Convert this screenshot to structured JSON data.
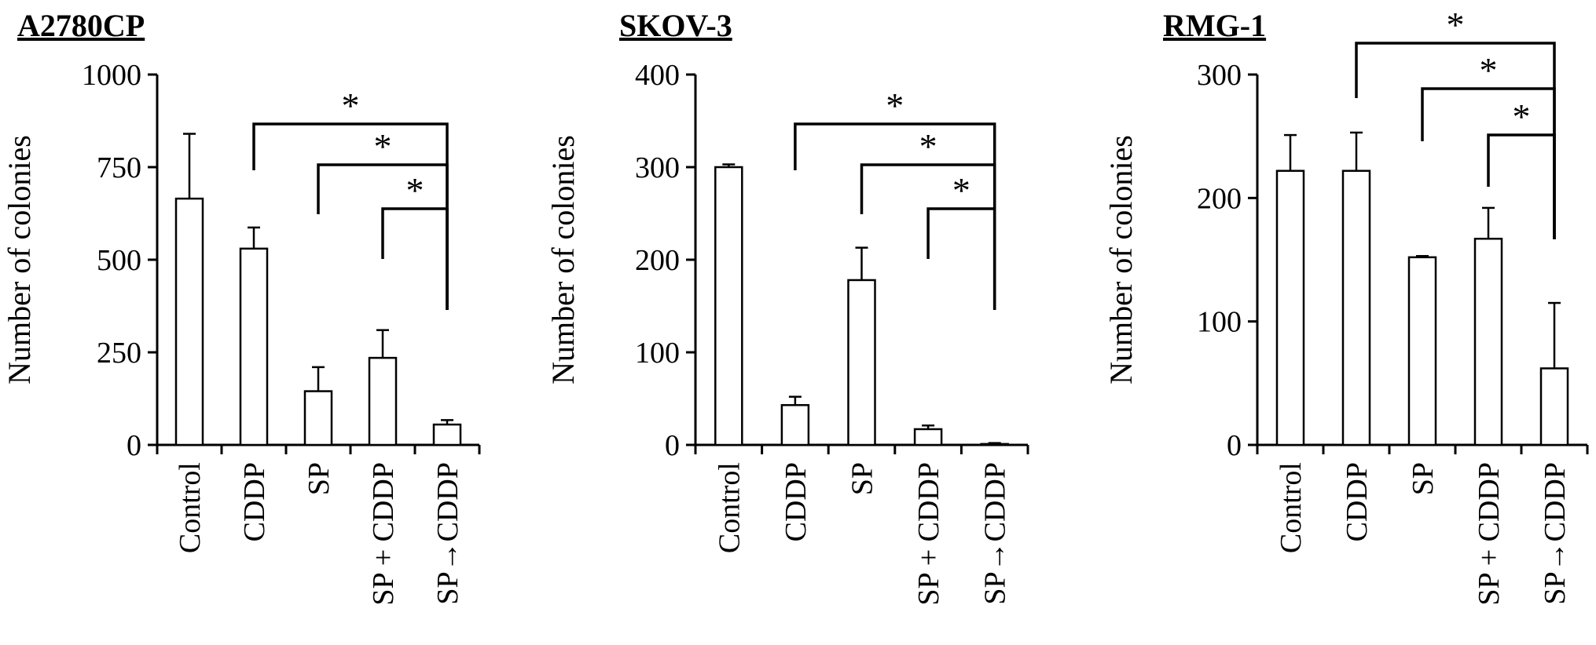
{
  "chart_data": [
    {
      "type": "bar",
      "title": "A2780CP",
      "ylabel": "Number of colonies",
      "categories": [
        "Control",
        "CDDP",
        "SP",
        "SP + CDDP",
        "SP→CDDP"
      ],
      "values": [
        665,
        530,
        145,
        235,
        55
      ],
      "errors": [
        175,
        57,
        65,
        75,
        12
      ],
      "ylim": [
        0,
        1000
      ],
      "yticks": [
        0,
        250,
        500,
        750,
        1000
      ],
      "significance": [
        {
          "from": 1,
          "to": 4,
          "label": "*"
        },
        {
          "from": 2,
          "to": 4,
          "label": "*"
        },
        {
          "from": 3,
          "to": 4,
          "label": "*"
        }
      ]
    },
    {
      "type": "bar",
      "title": "SKOV-3",
      "ylabel": "Number of colonies",
      "categories": [
        "Control",
        "CDDP",
        "SP",
        "SP + CDDP",
        "SP→CDDP"
      ],
      "values": [
        300,
        43,
        178,
        17,
        1
      ],
      "errors": [
        3,
        9,
        35,
        4,
        1
      ],
      "ylim": [
        0,
        400
      ],
      "yticks": [
        0,
        100,
        200,
        300,
        400
      ],
      "significance": [
        {
          "from": 1,
          "to": 4,
          "label": "*"
        },
        {
          "from": 2,
          "to": 4,
          "label": "*"
        },
        {
          "from": 3,
          "to": 4,
          "label": "*"
        }
      ]
    },
    {
      "type": "bar",
      "title": "RMG-1",
      "ylabel": "Number of colonies",
      "categories": [
        "Control",
        "CDDP",
        "SP",
        "SP + CDDP",
        "SP→CDDP"
      ],
      "values": [
        222,
        222,
        152,
        167,
        62
      ],
      "errors": [
        29,
        31,
        1,
        25,
        53
      ],
      "ylim": [
        0,
        300
      ],
      "yticks": [
        0,
        100,
        200,
        300
      ],
      "significance": [
        {
          "from": 1,
          "to": 4,
          "label": "*"
        },
        {
          "from": 2,
          "to": 4,
          "label": "*"
        },
        {
          "from": 3,
          "to": 4,
          "label": "*"
        }
      ]
    }
  ]
}
